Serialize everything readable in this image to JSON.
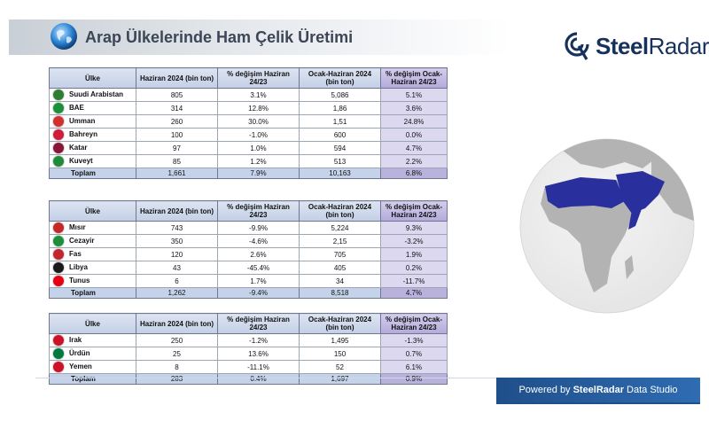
{
  "title": "Arap Ülkelerinde Ham Çelik Üretimi",
  "logo": {
    "brand_bold": "Steel",
    "brand_light": "Radar"
  },
  "headers": {
    "country": "Ülke",
    "june": "Haziran 2024 (bin ton)",
    "june_change": "% değişim Haziran 24/23",
    "ytd": "Ocak-Haziran 2024 (bin ton)",
    "ytd_change": "% değişim Ocak-Haziran 24/23"
  },
  "tables": [
    {
      "rows": [
        {
          "name": "Suudi Arabistan",
          "june": "805",
          "june_change": "3.1%",
          "ytd": "5,086",
          "ytd_change": "5.1%",
          "flag": "#2e7d32"
        },
        {
          "name": "BAE",
          "june": "314",
          "june_change": "12.8%",
          "ytd": "1,86",
          "ytd_change": "3.6%",
          "flag": "#1b8f3a"
        },
        {
          "name": "Umman",
          "june": "260",
          "june_change": "30.0%",
          "ytd": "1,51",
          "ytd_change": "24.8%",
          "flag": "#d32f2f"
        },
        {
          "name": "Bahreyn",
          "june": "100",
          "june_change": "-1.0%",
          "ytd": "600",
          "ytd_change": "0.0%",
          "flag": "#d01c3a"
        },
        {
          "name": "Katar",
          "june": "97",
          "june_change": "1.0%",
          "ytd": "594",
          "ytd_change": "4.7%",
          "flag": "#8a1538"
        },
        {
          "name": "Kuveyt",
          "june": "85",
          "june_change": "1.2%",
          "ytd": "513",
          "ytd_change": "2.2%",
          "flag": "#1f8a3a"
        }
      ],
      "total": {
        "name": "Toplam",
        "june": "1,661",
        "june_change": "7.9%",
        "ytd": "10,163",
        "ytd_change": "6.8%"
      }
    },
    {
      "rows": [
        {
          "name": "Mısır",
          "june": "743",
          "june_change": "-9.9%",
          "ytd": "5,224",
          "ytd_change": "9.3%",
          "flag": "#c62828"
        },
        {
          "name": "Cezayir",
          "june": "350",
          "june_change": "-4.6%",
          "ytd": "2,15",
          "ytd_change": "-3.2%",
          "flag": "#1b8f3a"
        },
        {
          "name": "Fas",
          "june": "120",
          "june_change": "2.6%",
          "ytd": "705",
          "ytd_change": "1.9%",
          "flag": "#c1272d"
        },
        {
          "name": "Libya",
          "june": "43",
          "june_change": "-45.4%",
          "ytd": "405",
          "ytd_change": "0.2%",
          "flag": "#1a1a1a"
        },
        {
          "name": "Tunus",
          "june": "6",
          "june_change": "1.7%",
          "ytd": "34",
          "ytd_change": "-11.7%",
          "flag": "#e70013"
        }
      ],
      "total": {
        "name": "Toplam",
        "june": "1,262",
        "june_change": "-9.4%",
        "ytd": "8,518",
        "ytd_change": "4.7%"
      }
    },
    {
      "rows": [
        {
          "name": "Irak",
          "june": "250",
          "june_change": "-1.2%",
          "ytd": "1,495",
          "ytd_change": "-1.3%",
          "flag": "#ce1126"
        },
        {
          "name": "Ürdün",
          "june": "25",
          "june_change": "13.6%",
          "ytd": "150",
          "ytd_change": "0.7%",
          "flag": "#007a3d"
        },
        {
          "name": "Yemen",
          "june": "8",
          "june_change": "-11.1%",
          "ytd": "52",
          "ytd_change": "6.1%",
          "flag": "#ce1126"
        }
      ],
      "total": {
        "name": "Toplam",
        "june": "283",
        "june_change": "0.4%",
        "ytd": "1,697",
        "ytd_change": "0.9%"
      }
    }
  ],
  "footer": {
    "prefix": "Powered by",
    "brand": "SteelRadar",
    "suffix": "Data Studio"
  },
  "colors": {
    "accent": "#1f4f8a",
    "header_blue": "#c3cfe6",
    "header_purple": "#b4aadb",
    "map_highlight": "#2a2f9e"
  }
}
